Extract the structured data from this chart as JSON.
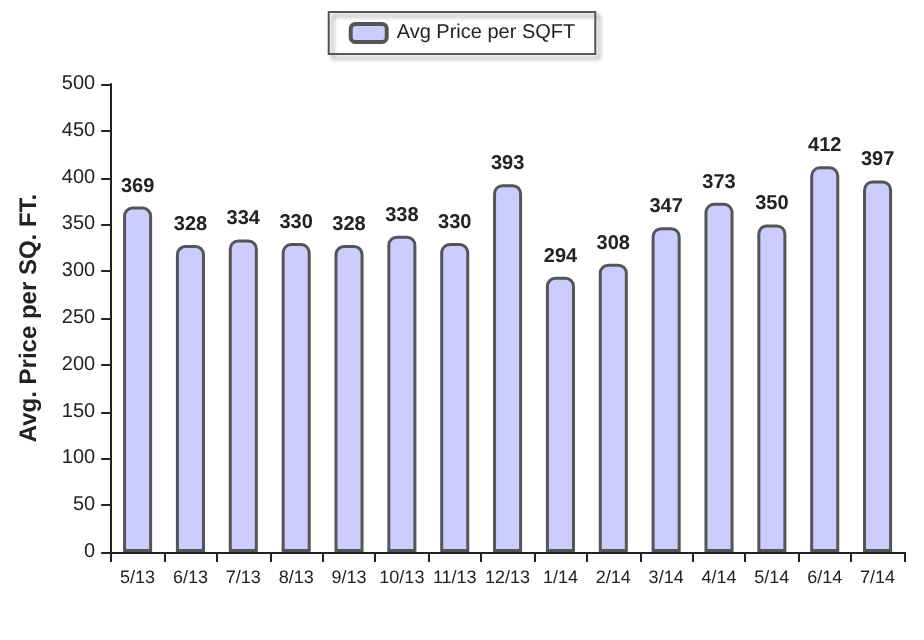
{
  "chart_data": {
    "type": "bar",
    "ylabel": "Avg. Price per SQ. FT.",
    "categories": [
      "5/13",
      "6/13",
      "7/13",
      "8/13",
      "9/13",
      "10/13",
      "11/13",
      "12/13",
      "1/14",
      "2/14",
      "3/14",
      "4/14",
      "5/14",
      "6/14",
      "7/14"
    ],
    "series": [
      {
        "name": "Avg Price per SQFT",
        "color": "#ccccff",
        "values": [
          369,
          328,
          334,
          330,
          328,
          338,
          330,
          393,
          294,
          308,
          347,
          373,
          350,
          412,
          397
        ]
      }
    ],
    "ylim": [
      0,
      500
    ],
    "yticks": [
      0,
      50,
      100,
      150,
      200,
      250,
      300,
      350,
      400,
      450,
      500
    ],
    "data_labels": true,
    "legend": "top",
    "grid": false
  }
}
